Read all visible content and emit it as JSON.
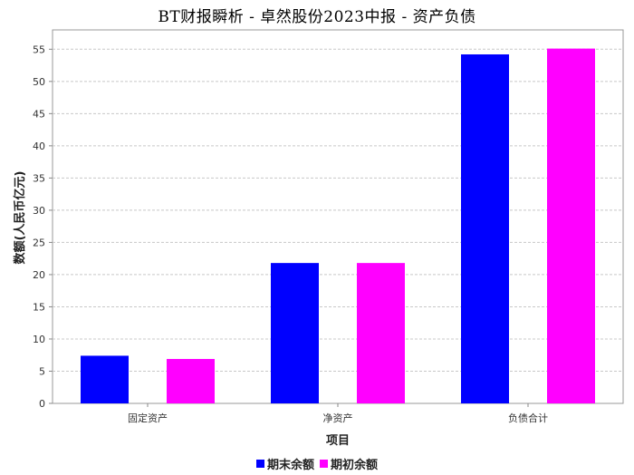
{
  "chart_data": {
    "type": "bar",
    "title": "BT财报瞬析 - 卓然股份2023中报 - 资产负债",
    "xlabel": "项目",
    "ylabel": "数额(人民币亿元)",
    "categories": [
      "固定资产",
      "净资产",
      "负债合计"
    ],
    "series": [
      {
        "name": "期末余额",
        "color": "#0000ff",
        "values": [
          7.4,
          21.8,
          54.2
        ]
      },
      {
        "name": "期初余额",
        "color": "#ff00ff",
        "values": [
          6.9,
          21.8,
          55.1
        ]
      }
    ],
    "ylim": [
      0,
      58
    ],
    "yticks": [
      0,
      5,
      10,
      15,
      20,
      25,
      30,
      35,
      40,
      45,
      50,
      55
    ],
    "grid": true,
    "legend_position": "bottom-center"
  }
}
